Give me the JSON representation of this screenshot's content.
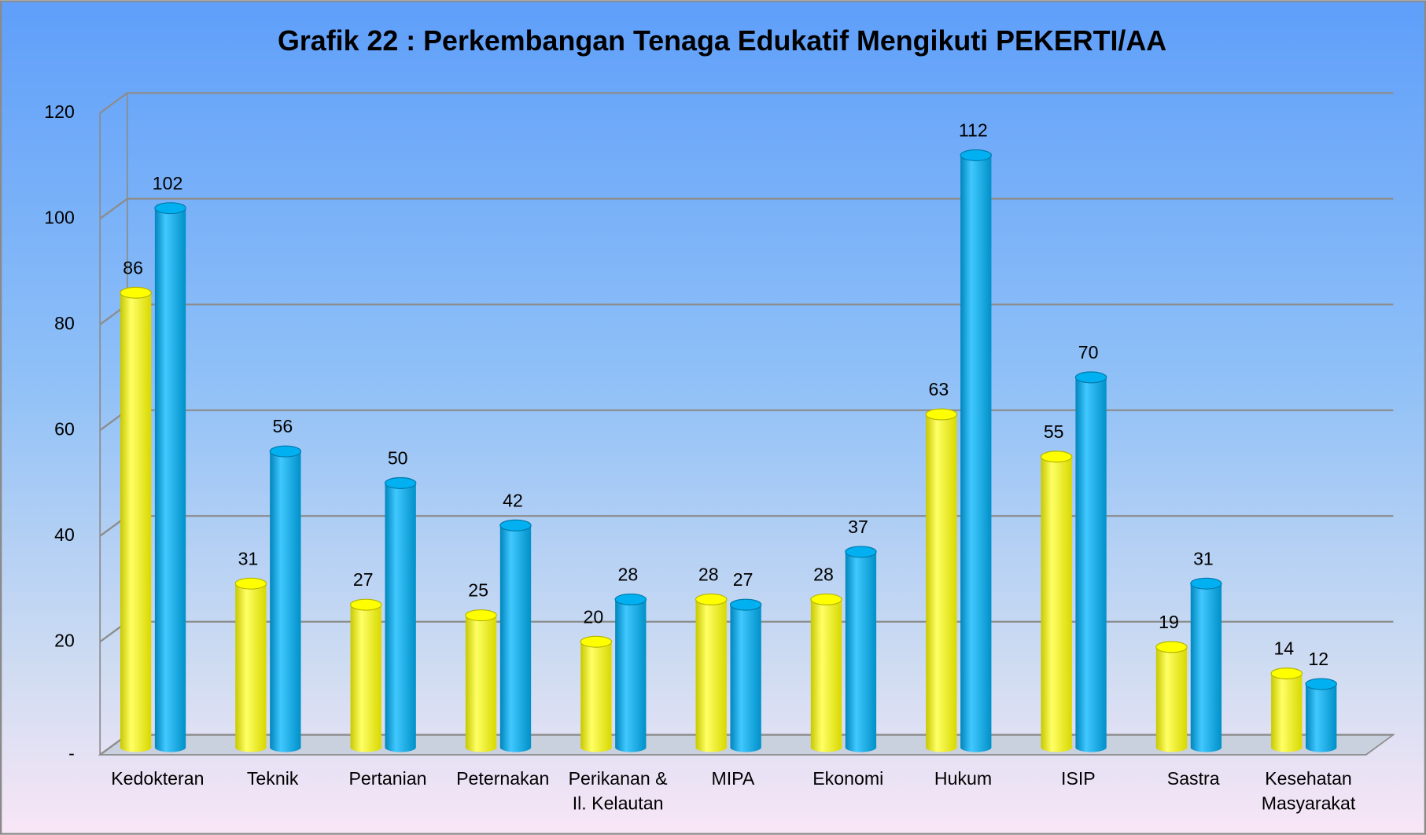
{
  "chart_data": {
    "type": "bar3d",
    "title": "Grafik  22 : Perkembangan Tenaga Edukatif Mengikuti PEKERTI/AA",
    "categories": [
      "Kedokteran",
      "Teknik",
      "Pertanian",
      "Peternakan",
      "Perikanan &\nIl. Kelautan",
      "MIPA",
      "Ekonomi",
      "Hukum",
      "ISIP",
      "Sastra",
      "Kesehatan\nMasyarakat"
    ],
    "series": [
      {
        "color": "#ffff00",
        "values": [
          86,
          31,
          27,
          25,
          20,
          28,
          28,
          63,
          55,
          19,
          14
        ]
      },
      {
        "color": "#00b0f0",
        "values": [
          102,
          56,
          50,
          42,
          28,
          27,
          37,
          112,
          70,
          31,
          12
        ]
      }
    ],
    "ylim": [
      0,
      120
    ],
    "yticks": [
      {
        "value": 0,
        "label": "-"
      },
      20,
      40,
      60,
      80,
      100,
      120
    ],
    "grid": true
  }
}
